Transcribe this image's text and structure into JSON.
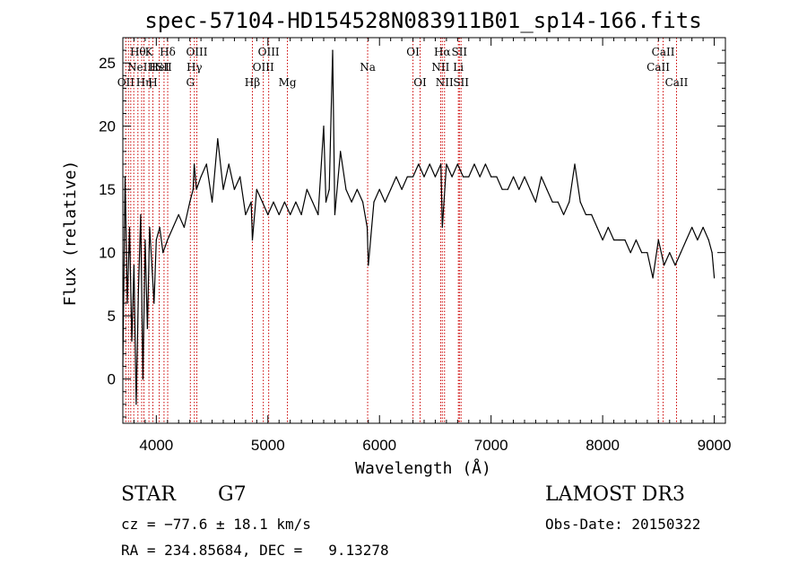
{
  "chart_data": {
    "type": "line",
    "title": "spec-57104-HD154528N083911B01_sp14-166.fits",
    "xlabel": "Wavelength (Å)",
    "ylabel": "Flux (relative)",
    "xlim": [
      3700,
      9100
    ],
    "ylim": [
      -3.5,
      27
    ],
    "xticks": [
      4000,
      5000,
      6000,
      7000,
      8000,
      9000
    ],
    "yticks": [
      0,
      5,
      10,
      15,
      20,
      25
    ],
    "grid": false,
    "series": [
      {
        "name": "flux",
        "color": "#000000",
        "x": [
          3700,
          3720,
          3740,
          3760,
          3780,
          3800,
          3820,
          3840,
          3860,
          3880,
          3900,
          3920,
          3940,
          3960,
          3980,
          4000,
          4030,
          4060,
          4100,
          4150,
          4200,
          4250,
          4300,
          4330,
          4340,
          4360,
          4400,
          4450,
          4500,
          4550,
          4600,
          4650,
          4700,
          4750,
          4800,
          4850,
          4861,
          4900,
          4950,
          5000,
          5050,
          5100,
          5150,
          5200,
          5250,
          5300,
          5350,
          5400,
          5450,
          5500,
          5520,
          5550,
          5580,
          5600,
          5650,
          5700,
          5750,
          5800,
          5850,
          5890,
          5900,
          5950,
          6000,
          6050,
          6100,
          6150,
          6200,
          6250,
          6300,
          6350,
          6400,
          6450,
          6500,
          6550,
          6563,
          6600,
          6650,
          6700,
          6750,
          6800,
          6850,
          6900,
          6950,
          7000,
          7050,
          7100,
          7150,
          7200,
          7250,
          7300,
          7350,
          7400,
          7450,
          7500,
          7550,
          7600,
          7650,
          7700,
          7750,
          7800,
          7850,
          7900,
          7950,
          8000,
          8050,
          8100,
          8150,
          8200,
          8250,
          8300,
          8350,
          8400,
          8450,
          8500,
          8550,
          8600,
          8650,
          8700,
          8750,
          8800,
          8850,
          8900,
          8950,
          8980,
          9000
        ],
        "values": [
          1,
          16,
          6,
          12,
          3,
          9,
          -2,
          7,
          13,
          0,
          11,
          4,
          12,
          9,
          6,
          11,
          12,
          10,
          11,
          12,
          13,
          12,
          14,
          15,
          17,
          15,
          16,
          17,
          14,
          19,
          15,
          17,
          15,
          16,
          13,
          14,
          11,
          15,
          14,
          13,
          14,
          13,
          14,
          13,
          14,
          13,
          15,
          14,
          13,
          20,
          14,
          15,
          26,
          13,
          18,
          15,
          14,
          15,
          14,
          12,
          9,
          14,
          15,
          14,
          15,
          16,
          15,
          16,
          16,
          17,
          16,
          17,
          16,
          17,
          12,
          17,
          16,
          17,
          16,
          16,
          17,
          16,
          17,
          16,
          16,
          15,
          15,
          16,
          15,
          16,
          15,
          14,
          16,
          15,
          14,
          14,
          13,
          14,
          17,
          14,
          13,
          13,
          12,
          11,
          12,
          11,
          11,
          11,
          10,
          11,
          10,
          10,
          8,
          11,
          9,
          10,
          9,
          10,
          11,
          12,
          11,
          12,
          11,
          10,
          8
        ]
      }
    ],
    "lines": [
      {
        "x": 3727,
        "upper": "OII",
        "row": 2
      },
      {
        "x": 3750,
        "upper": "",
        "row": 0
      },
      {
        "x": 3771,
        "upper": "",
        "row": 0
      },
      {
        "x": 3798,
        "upper": "",
        "row": 0
      },
      {
        "x": 3835,
        "upper": "Hθ",
        "row": 0
      },
      {
        "x": 3869,
        "upper": "NeIII",
        "row": 1
      },
      {
        "x": 3889,
        "upper": "Hη",
        "row": 2
      },
      {
        "x": 3934,
        "upper": "K",
        "row": 0
      },
      {
        "x": 3969,
        "upper": "H",
        "row": 2
      },
      {
        "x": 4026,
        "upper": "HeI",
        "row": 1
      },
      {
        "x": 4069,
        "upper": "SII",
        "row": 1
      },
      {
        "x": 4102,
        "upper": "Hδ",
        "row": 0
      },
      {
        "x": 4305,
        "upper": "G",
        "row": 2
      },
      {
        "x": 4341,
        "upper": "Hγ",
        "row": 1
      },
      {
        "x": 4363,
        "upper": "OIII",
        "row": 0
      },
      {
        "x": 4861,
        "upper": "Hβ",
        "row": 2
      },
      {
        "x": 4959,
        "upper": "OIII",
        "row": 1
      },
      {
        "x": 5007,
        "upper": "OIII",
        "row": 0
      },
      {
        "x": 5175,
        "upper": "Mg",
        "row": 2
      },
      {
        "x": 5894,
        "upper": "Na",
        "row": 1
      },
      {
        "x": 6300,
        "upper": "OI",
        "row": 0
      },
      {
        "x": 6364,
        "upper": "OI",
        "row": 2
      },
      {
        "x": 6548,
        "upper": "NII",
        "row": 1
      },
      {
        "x": 6563,
        "upper": "Hα",
        "row": 0
      },
      {
        "x": 6583,
        "upper": "NII",
        "row": 2
      },
      {
        "x": 6707,
        "upper": "Li",
        "row": 1
      },
      {
        "x": 6716,
        "upper": "SII",
        "row": 0
      },
      {
        "x": 6731,
        "upper": "SII",
        "row": 2
      },
      {
        "x": 8498,
        "upper": "CaII",
        "row": 1
      },
      {
        "x": 8542,
        "upper": "CaII",
        "row": 0
      },
      {
        "x": 8662,
        "upper": "CaII",
        "row": 2
      }
    ],
    "line_color": "#cc0000"
  },
  "info": {
    "class": "STAR",
    "subclass": "G7",
    "survey": "LAMOST DR3",
    "cz": "cz = −77.6 ± 18.1 km/s",
    "obs_date": "Obs-Date: 20150322",
    "radec": "RA = 234.85684, DEC =   9.13278"
  }
}
